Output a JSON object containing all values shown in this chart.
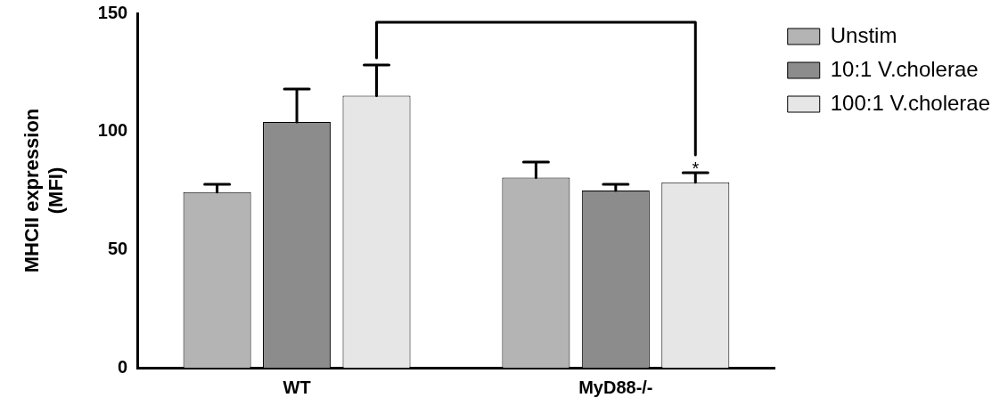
{
  "chart_data": {
    "type": "bar",
    "ylabel": "MHCII expression\n(MFI)",
    "categories": [
      "WT",
      "MyD88-/-"
    ],
    "series": [
      {
        "name": "Unstim",
        "color": "#b4b4b4",
        "values": [
          74.3,
          80.5
        ],
        "errors": [
          3.3,
          6.6
        ]
      },
      {
        "name": "10:1 V.cholerae",
        "color": "#8c8c8c",
        "values": [
          104,
          75
        ],
        "errors": [
          14,
          2.6
        ]
      },
      {
        "name": "100:1 V.cholerae",
        "color": "#e6e6e6",
        "values": [
          115.1,
          78.5
        ],
        "errors": [
          13,
          4
        ]
      }
    ],
    "ylim": [
      0,
      150
    ],
    "yticks": [
      0,
      50,
      100,
      150
    ],
    "grid": false,
    "legend": "top right",
    "annotations": [
      "*"
    ]
  }
}
